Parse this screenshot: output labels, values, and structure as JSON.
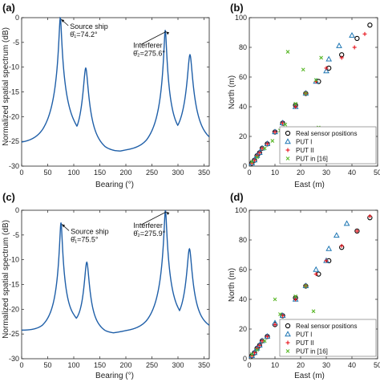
{
  "chart_data": [
    {
      "panel": "(a)",
      "type": "line",
      "xlabel": "Bearing (°)",
      "ylabel": "Normalized spatial spectrum (dB)",
      "xlim": [
        0,
        360
      ],
      "ylim": [
        -30,
        0
      ],
      "xticks": [
        0,
        50,
        100,
        150,
        200,
        250,
        300,
        350
      ],
      "yticks": [
        0,
        -5,
        -10,
        -15,
        -20,
        -25,
        -30
      ],
      "line_color": "#1f5fa8",
      "peaks": [
        {
          "x": 74.2,
          "y": 0,
          "w": 2.0
        },
        {
          "x": 123,
          "y": -10.2,
          "w": 3.5
        },
        {
          "x": 275.6,
          "y": -2.5,
          "w": 2.0
        },
        {
          "x": 323,
          "y": -7.5,
          "w": 3.5
        }
      ],
      "valleys": [
        {
          "x": 0,
          "y": -26.3
        },
        {
          "x": 40,
          "y": -26.8
        },
        {
          "x": 100,
          "y": -25.8
        },
        {
          "x": 160,
          "y": -27.8
        },
        {
          "x": 200,
          "y": -27.6
        },
        {
          "x": 240,
          "y": -27.8
        },
        {
          "x": 300,
          "y": -25.5
        },
        {
          "x": 360,
          "y": -26.3
        }
      ],
      "annotations": [
        {
          "lines": [
            "Source ship",
            "θ̂₁=74.2°"
          ],
          "target": [
            74.2,
            0
          ]
        },
        {
          "lines": [
            "Interferer",
            "θ̂₂=275.6°"
          ],
          "target": [
            275.6,
            -2.5
          ]
        }
      ]
    },
    {
      "panel": "(b)",
      "type": "scatter",
      "xlabel": "East (m)",
      "ylabel": "North (m)",
      "xlim": [
        0,
        50
      ],
      "ylim": [
        0,
        100
      ],
      "xticks": [
        0,
        10,
        20,
        30,
        40,
        50
      ],
      "yticks": [
        0,
        20,
        40,
        60,
        80,
        100
      ],
      "legend_position": "bottom-right",
      "series": [
        {
          "name": "Real sensor positions",
          "marker": "circle",
          "color": "#000000",
          "points": [
            [
              1,
              2
            ],
            [
              2,
              4
            ],
            [
              3,
              7
            ],
            [
              4,
              9
            ],
            [
              5,
              12
            ],
            [
              7,
              15
            ],
            [
              10,
              23
            ],
            [
              13,
              29
            ],
            [
              18,
              41
            ],
            [
              22,
              49
            ],
            [
              27,
              57
            ],
            [
              31,
              66
            ],
            [
              36,
              75
            ],
            [
              42,
              86
            ],
            [
              47,
              95
            ]
          ]
        },
        {
          "name": "PUT  I",
          "marker": "triangle",
          "color": "#1f77b4",
          "points": [
            [
              1,
              2
            ],
            [
              2,
              4
            ],
            [
              3,
              7
            ],
            [
              4,
              9
            ],
            [
              5,
              12
            ],
            [
              7,
              15
            ],
            [
              10,
              23
            ],
            [
              13,
              29
            ],
            [
              18,
              40
            ],
            [
              22,
              49
            ],
            [
              26,
              57
            ],
            [
              30,
              64
            ],
            [
              31,
              72
            ],
            [
              35,
              81
            ],
            [
              40,
              88
            ]
          ]
        },
        {
          "name": "PUT II",
          "marker": "plus",
          "color": "#e8141c",
          "points": [
            [
              1,
              2
            ],
            [
              2,
              4
            ],
            [
              3,
              7
            ],
            [
              4,
              9
            ],
            [
              5,
              12
            ],
            [
              7,
              15
            ],
            [
              10,
              23
            ],
            [
              13,
              29
            ],
            [
              18,
              40
            ],
            [
              22,
              49
            ],
            [
              26,
              57
            ],
            [
              30,
              66
            ],
            [
              36,
              73
            ],
            [
              41,
              80
            ],
            [
              45,
              89
            ]
          ]
        },
        {
          "name": "PUT in [16]",
          "marker": "cross",
          "color": "#5cb82c",
          "points": [
            [
              1,
              3
            ],
            [
              3,
              6
            ],
            [
              6,
              12
            ],
            [
              9,
              17
            ],
            [
              12,
              24
            ],
            [
              14,
              28
            ],
            [
              18,
              42
            ],
            [
              22,
              49
            ],
            [
              21,
              65
            ],
            [
              26,
              58
            ],
            [
              27,
              26
            ],
            [
              28,
              73
            ],
            [
              15,
              77
            ]
          ]
        }
      ]
    },
    {
      "panel": "(c)",
      "type": "line",
      "xlabel": "Bearing (°)",
      "ylabel": "Normalized spatial spectrum (dB)",
      "xlim": [
        0,
        360
      ],
      "ylim": [
        -30,
        0
      ],
      "xticks": [
        0,
        50,
        100,
        150,
        200,
        250,
        300,
        350
      ],
      "yticks": [
        0,
        -5,
        -10,
        -15,
        -20,
        -25,
        -30
      ],
      "line_color": "#1f5fa8",
      "peaks": [
        {
          "x": 75.5,
          "y": -2.5,
          "w": 2.0
        },
        {
          "x": 125,
          "y": -10.5,
          "w": 3.5
        },
        {
          "x": 275.9,
          "y": 0,
          "w": 2.0
        },
        {
          "x": 322,
          "y": -7.8,
          "w": 3.5
        }
      ],
      "valleys": [
        {
          "x": 0,
          "y": -24.7
        },
        {
          "x": 40,
          "y": -25.2
        },
        {
          "x": 100,
          "y": -23.8
        },
        {
          "x": 160,
          "y": -25.4
        },
        {
          "x": 200,
          "y": -25.2
        },
        {
          "x": 240,
          "y": -25.4
        },
        {
          "x": 300,
          "y": -23.9
        },
        {
          "x": 360,
          "y": -24.7
        }
      ],
      "annotations": [
        {
          "lines": [
            "Source ship",
            "θ̂₁=75.5°"
          ],
          "target": [
            75.5,
            -2.5
          ]
        },
        {
          "lines": [
            "Interferer",
            "θ̂₂=275.9°"
          ],
          "target": [
            275.9,
            0
          ]
        }
      ]
    },
    {
      "panel": "(d)",
      "type": "scatter",
      "xlabel": "East (m)",
      "ylabel": "North (m)",
      "xlim": [
        0,
        50
      ],
      "ylim": [
        0,
        100
      ],
      "xticks": [
        0,
        10,
        20,
        30,
        40,
        50
      ],
      "yticks": [
        0,
        20,
        40,
        60,
        80,
        100
      ],
      "legend_position": "bottom-right",
      "series": [
        {
          "name": "Real sensor positions",
          "marker": "circle",
          "color": "#000000",
          "points": [
            [
              1,
              2
            ],
            [
              2,
              4
            ],
            [
              3,
              7
            ],
            [
              4,
              9
            ],
            [
              5,
              12
            ],
            [
              7,
              15
            ],
            [
              10,
              23
            ],
            [
              13,
              29
            ],
            [
              18,
              41
            ],
            [
              22,
              49
            ],
            [
              27,
              57
            ],
            [
              31,
              66
            ],
            [
              36,
              75
            ],
            [
              42,
              86
            ],
            [
              47,
              95
            ]
          ]
        },
        {
          "name": "PUT I",
          "marker": "triangle",
          "color": "#1f77b4",
          "points": [
            [
              1,
              2
            ],
            [
              2,
              4
            ],
            [
              3,
              7
            ],
            [
              4,
              9
            ],
            [
              5,
              12
            ],
            [
              7,
              15
            ],
            [
              10,
              24
            ],
            [
              13,
              29
            ],
            [
              18,
              40
            ],
            [
              22,
              49
            ],
            [
              26,
              60
            ],
            [
              30,
              66
            ],
            [
              31,
              74
            ],
            [
              34,
              83
            ],
            [
              38,
              91
            ]
          ]
        },
        {
          "name": "PUT II",
          "marker": "plus",
          "color": "#e8141c",
          "points": [
            [
              1,
              2
            ],
            [
              2,
              4
            ],
            [
              3,
              7
            ],
            [
              4,
              9
            ],
            [
              5,
              12
            ],
            [
              7,
              15
            ],
            [
              10,
              23
            ],
            [
              13,
              29
            ],
            [
              18,
              40
            ],
            [
              22,
              49
            ],
            [
              26,
              57
            ],
            [
              30,
              66
            ],
            [
              36,
              76
            ],
            [
              42,
              86
            ],
            [
              47,
              96
            ]
          ]
        },
        {
          "name": "PUT in [16]",
          "marker": "cross",
          "color": "#5cb82c",
          "points": [
            [
              1,
              3
            ],
            [
              3,
              6
            ],
            [
              6,
              12
            ],
            [
              10,
              40
            ],
            [
              12,
              30
            ],
            [
              17,
              24
            ],
            [
              18,
              42
            ],
            [
              22,
              49
            ],
            [
              25,
              32
            ]
          ]
        }
      ]
    }
  ]
}
